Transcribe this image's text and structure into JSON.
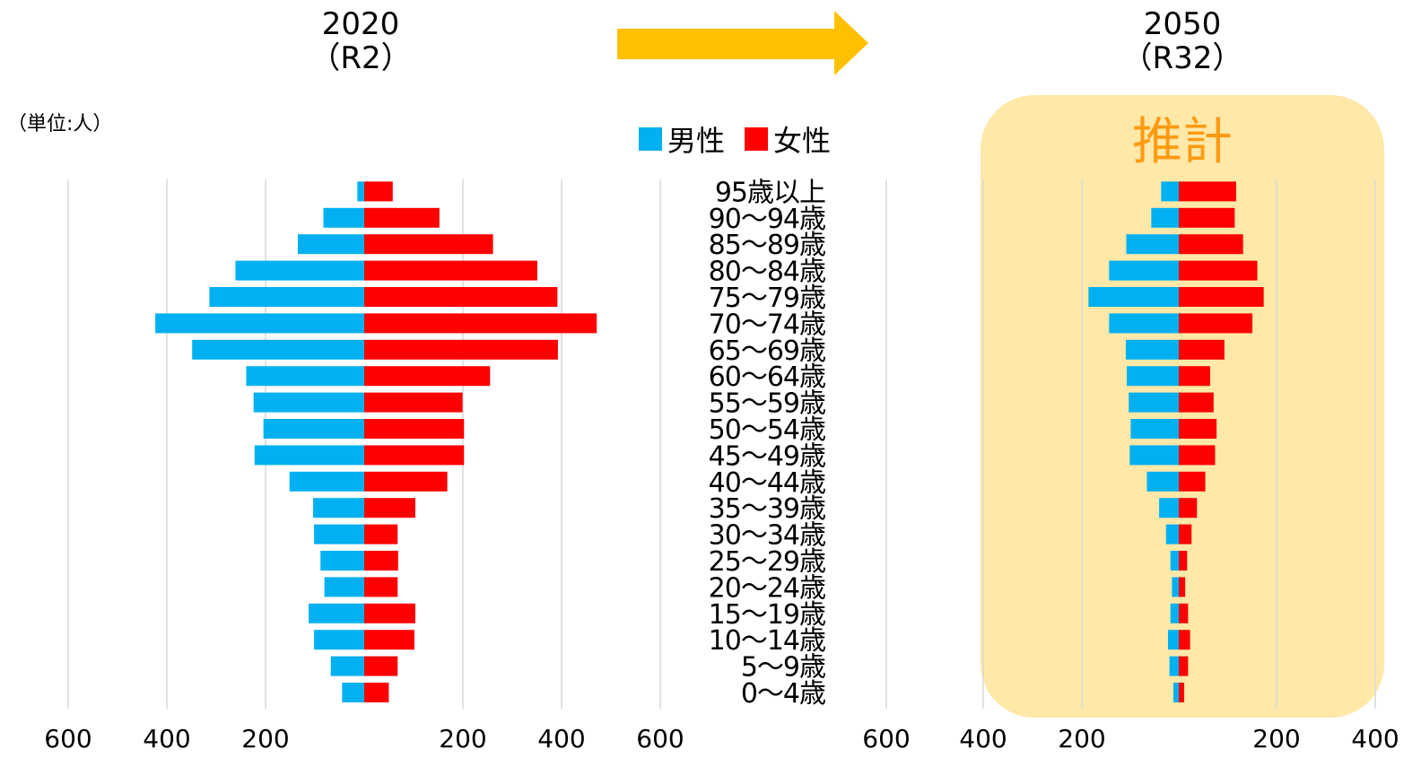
{
  "header": {
    "left_year": "2020",
    "left_era": "（R2）",
    "right_year": "2050",
    "right_era": "（R32）"
  },
  "unit_label": "（単位:人）",
  "estimate_label": "推計",
  "legend": {
    "male": "男性",
    "female": "女性"
  },
  "colors": {
    "male": "#00b0f0",
    "female": "#ff0000",
    "arrow": "#ffc000",
    "grid": "#d9d9d9",
    "estimate_panel": "#ffe8a8",
    "estimate_text": "#ff9a10"
  },
  "chart_data": [
    {
      "type": "bar",
      "orientation": "horizontal",
      "title": "2020（R2）",
      "categories": [
        "0〜4歳",
        "5〜9歳",
        "10〜14歳",
        "15〜19歳",
        "20〜24歳",
        "25〜29歳",
        "30〜34歳",
        "35〜39歳",
        "40〜44歳",
        "45〜49歳",
        "50〜54歳",
        "55〜59歳",
        "60〜64歳",
        "65〜69歳",
        "70〜74歳",
        "75〜79歳",
        "80〜84歳",
        "85〜89歳",
        "90〜94歳",
        "95歳以上"
      ],
      "series": [
        {
          "name": "男性",
          "values": [
            45,
            68,
            102,
            113,
            81,
            89,
            102,
            104,
            152,
            223,
            205,
            225,
            240,
            350,
            425,
            315,
            262,
            135,
            83,
            14
          ]
        },
        {
          "name": "女性",
          "values": [
            50,
            68,
            102,
            104,
            68,
            69,
            68,
            104,
            169,
            203,
            203,
            200,
            256,
            394,
            473,
            393,
            352,
            262,
            153,
            58
          ]
        }
      ],
      "xticks": [
        "600",
        "400",
        "200",
        "200",
        "400",
        "600"
      ],
      "xlim": [
        -600,
        600
      ]
    },
    {
      "type": "bar",
      "orientation": "horizontal",
      "title": "2050（R32）",
      "categories": [
        "0〜4歳",
        "5〜9歳",
        "10〜14歳",
        "15〜19歳",
        "20〜24歳",
        "25〜29歳",
        "30〜34歳",
        "35〜39歳",
        "40〜44歳",
        "45〜49歳",
        "50〜54歳",
        "55〜59歳",
        "60〜64歳",
        "65〜69歳",
        "70〜74歳",
        "75〜79歳",
        "80〜84歳",
        "85〜89歳",
        "90〜94歳",
        "95歳以上"
      ],
      "series": [
        {
          "name": "男性",
          "values": [
            11,
            19,
            22,
            17,
            14,
            17,
            26,
            40,
            65,
            100,
            98,
            102,
            106,
            108,
            142,
            184,
            142,
            107,
            56,
            36
          ]
        },
        {
          "name": "女性",
          "values": [
            11,
            19,
            23,
            19,
            13,
            17,
            26,
            37,
            54,
            74,
            77,
            71,
            64,
            93,
            150,
            173,
            160,
            131,
            114,
            117
          ]
        }
      ],
      "xticks": [
        "600",
        "400",
        "200",
        "200",
        "400"
      ],
      "xlim": [
        -600,
        400
      ]
    }
  ]
}
